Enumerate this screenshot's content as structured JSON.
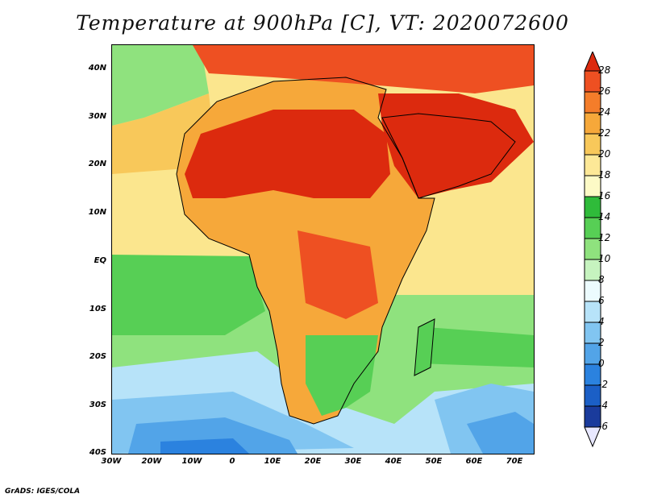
{
  "title": "Temperature at 900hPa [C], VT: 2020072600",
  "latitude_labels": [
    "40N",
    "30N",
    "20N",
    "10N",
    "EQ",
    "10S",
    "20S",
    "30S",
    "40S"
  ],
  "longitude_labels": [
    "30W",
    "20W",
    "10W",
    "0",
    "10E",
    "20E",
    "30E",
    "40E",
    "50E",
    "60E",
    "70E"
  ],
  "colorbar": {
    "labels": [
      "28",
      "26",
      "24",
      "22",
      "20",
      "18",
      "16",
      "14",
      "12",
      "10",
      "8",
      "6",
      "4",
      "2",
      "0",
      "-2",
      "-4",
      "-6"
    ],
    "colors": [
      "#dc2a0e",
      "#ee5022",
      "#f47d2a",
      "#f6a83a",
      "#f8c85a",
      "#fde897",
      "#fdfac6",
      "#2fbb3a",
      "#57cf55",
      "#8fe27e",
      "#c6f3bf",
      "#ecfbfe",
      "#b7e3f9",
      "#81c5f1",
      "#52a4e8",
      "#2b82df",
      "#1b5fc6",
      "#1a3b9c",
      "#0e1f6c"
    ]
  },
  "credit": "GrADS: IGES/COLA"
}
